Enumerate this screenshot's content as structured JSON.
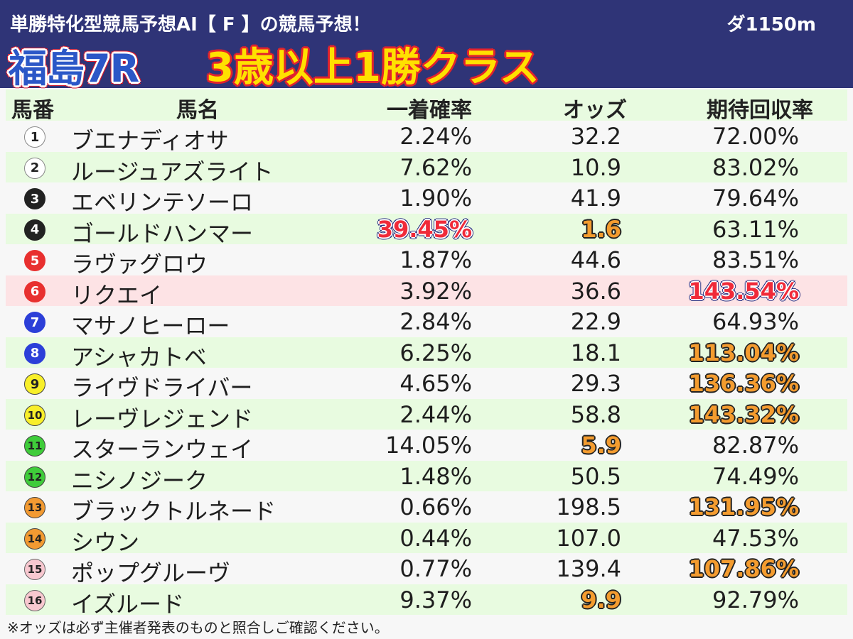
{
  "header": {
    "subtitle": "単勝特化型競馬予想AI【 F 】の競馬予想！",
    "distance": "ダ1150m",
    "race_name": "福島7R",
    "race_class": "3歳以上1勝クラス"
  },
  "table": {
    "headers": [
      "馬番",
      "馬名",
      "一着確率",
      "オッズ",
      "期待回収率"
    ],
    "rows": [
      {
        "num": "1",
        "name": "ブエナディオサ",
        "prob": "2.24%",
        "odds": "32.2",
        "ret": "72.00%",
        "badge_bg": "#ffffff",
        "badge_fg": "#222222",
        "badge_border": "#888888"
      },
      {
        "num": "2",
        "name": "ルージュアズライト",
        "prob": "7.62%",
        "odds": "10.9",
        "ret": "83.02%",
        "badge_bg": "#ffffff",
        "badge_fg": "#222222",
        "badge_border": "#888888"
      },
      {
        "num": "3",
        "name": "エベリンテソーロ",
        "prob": "1.90%",
        "odds": "41.9",
        "ret": "79.64%",
        "badge_bg": "#222222",
        "badge_fg": "#ffffff",
        "badge_border": "#222222"
      },
      {
        "num": "4",
        "name": "ゴールドハンマー",
        "prob": "39.45%",
        "odds": "1.6",
        "ret": "63.11%",
        "badge_bg": "#222222",
        "badge_fg": "#ffffff",
        "badge_border": "#222222",
        "prob_style": "red",
        "odds_style": "orange"
      },
      {
        "num": "5",
        "name": "ラヴァグロウ",
        "prob": "1.87%",
        "odds": "44.6",
        "ret": "83.51%",
        "badge_bg": "#e8302f",
        "badge_fg": "#ffffff",
        "badge_border": "#e8302f"
      },
      {
        "num": "6",
        "name": "リクエイ",
        "prob": "3.92%",
        "odds": "36.6",
        "ret": "143.54%",
        "badge_bg": "#e8302f",
        "badge_fg": "#ffffff",
        "badge_border": "#e8302f",
        "ret_style": "red",
        "row_highlight": true
      },
      {
        "num": "7",
        "name": "マサノヒーロー",
        "prob": "2.84%",
        "odds": "22.9",
        "ret": "64.93%",
        "badge_bg": "#2c3fd8",
        "badge_fg": "#ffffff",
        "badge_border": "#2c3fd8"
      },
      {
        "num": "8",
        "name": "アシャカトベ",
        "prob": "6.25%",
        "odds": "18.1",
        "ret": "113.04%",
        "badge_bg": "#2c3fd8",
        "badge_fg": "#ffffff",
        "badge_border": "#2c3fd8",
        "ret_style": "orange"
      },
      {
        "num": "9",
        "name": "ライヴドライバー",
        "prob": "4.65%",
        "odds": "29.3",
        "ret": "136.36%",
        "badge_bg": "#f8ef2a",
        "badge_fg": "#222222",
        "badge_border": "#444444",
        "ret_style": "orange"
      },
      {
        "num": "10",
        "name": "レーヴレジェンド",
        "prob": "2.44%",
        "odds": "58.8",
        "ret": "143.32%",
        "badge_bg": "#f8ef2a",
        "badge_fg": "#222222",
        "badge_border": "#444444",
        "ret_style": "orange"
      },
      {
        "num": "11",
        "name": "スターランウェイ",
        "prob": "14.05%",
        "odds": "5.9",
        "ret": "82.87%",
        "badge_bg": "#3fcc3a",
        "badge_fg": "#222222",
        "badge_border": "#444444",
        "odds_style": "orange"
      },
      {
        "num": "12",
        "name": "ニシノジーク",
        "prob": "1.48%",
        "odds": "50.5",
        "ret": "74.49%",
        "badge_bg": "#3fcc3a",
        "badge_fg": "#222222",
        "badge_border": "#444444"
      },
      {
        "num": "13",
        "name": "ブラックトルネード",
        "prob": "0.66%",
        "odds": "198.5",
        "ret": "131.95%",
        "badge_bg": "#f29a32",
        "badge_fg": "#222222",
        "badge_border": "#444444",
        "ret_style": "orange"
      },
      {
        "num": "14",
        "name": "シウン",
        "prob": "0.44%",
        "odds": "107.0",
        "ret": "47.53%",
        "badge_bg": "#f29a32",
        "badge_fg": "#222222",
        "badge_border": "#444444"
      },
      {
        "num": "15",
        "name": "ポップグルーヴ",
        "prob": "0.77%",
        "odds": "139.4",
        "ret": "107.86%",
        "badge_bg": "#f8c8d0",
        "badge_fg": "#222222",
        "badge_border": "#666666",
        "ret_style": "orange"
      },
      {
        "num": "16",
        "name": "イズルード",
        "prob": "9.37%",
        "odds": "9.9",
        "ret": "92.79%",
        "badge_bg": "#f8c8d0",
        "badge_fg": "#222222",
        "badge_border": "#666666",
        "odds_style": "orange"
      }
    ]
  },
  "footnote": "※オッズは必ず主催者発表のものと照合しご確認ください。"
}
